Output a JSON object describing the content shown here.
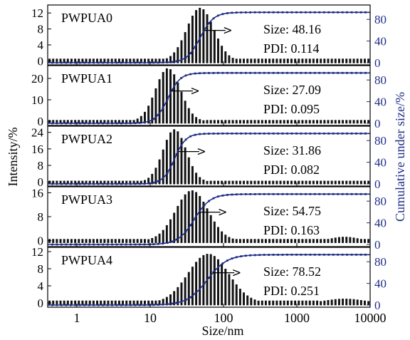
{
  "colors": {
    "bars": "#111111",
    "cumulative_curve": "#1f2d86",
    "right_axis": "#1f2d86",
    "frame": "#000000"
  },
  "chart_data": {
    "type": "bar",
    "xlabel": "Size/nm",
    "ylabel_left": "Intensity/%",
    "ylabel_right": "Cumulative under size/%",
    "x_scale": "log",
    "xlim": [
      0.4,
      10000
    ],
    "x_ticks": [
      {
        "value": 1,
        "label": "1"
      },
      {
        "value": 10,
        "label": "10"
      },
      {
        "value": 100,
        "label": "100"
      },
      {
        "value": 1000,
        "label": "1000"
      },
      {
        "value": 10000,
        "label": "10000"
      }
    ],
    "right_ylim": [
      0,
      100
    ],
    "right_ticks": [
      "0",
      "40",
      "80"
    ],
    "grid": false,
    "panels": [
      {
        "name": "PWPUA0",
        "size_text": "Size: 48.16",
        "pdi_text": "PDI: 0.114",
        "ylim": [
          -1,
          14
        ],
        "y_ticks": [
          "0",
          "4",
          "8",
          "12"
        ],
        "intensity": {
          "center": 48.16,
          "pdi": 0.114,
          "peak": 13.3,
          "secondary": []
        },
        "cumulative": {
          "median": 48.16,
          "pdi": 0.114,
          "end_level": 0.93
        }
      },
      {
        "name": "PWPUA1",
        "size_text": "Size: 27.09",
        "pdi_text": "PDI: 0.095",
        "ylim": [
          -2,
          26
        ],
        "y_ticks": [
          "0",
          "10",
          "20"
        ],
        "intensity": {
          "center": 17.5,
          "pdi": 0.095,
          "peak": 24.8,
          "secondary": []
        },
        "cumulative": {
          "median": 17.5,
          "pdi": 0.095,
          "end_level": 0.93
        }
      },
      {
        "name": "PWPUA2",
        "size_text": "Size: 31.86",
        "pdi_text": "PDI: 0.082",
        "ylim": [
          -2,
          27
        ],
        "y_ticks": [
          "0",
          "8",
          "16",
          "24"
        ],
        "intensity": {
          "center": 21.5,
          "pdi": 0.082,
          "peak": 25.5,
          "secondary": []
        },
        "cumulative": {
          "median": 21.5,
          "pdi": 0.082,
          "end_level": 0.93
        }
      },
      {
        "name": "PWPUA3",
        "size_text": "Size: 54.75",
        "pdi_text": "PDI: 0.163",
        "ylim": [
          -2,
          18
        ],
        "y_ticks": [
          "0",
          "8",
          "16"
        ],
        "intensity": {
          "center": 37,
          "pdi": 0.163,
          "peak": 16.8,
          "secondary": [
            {
              "center": 4500,
              "width": 0.35,
              "height": 1.3
            }
          ]
        },
        "cumulative": {
          "median": 40,
          "pdi": 0.163,
          "end_level": 0.93
        }
      },
      {
        "name": "PWPUA4",
        "size_text": "Size: 78.52",
        "pdi_text": "PDI: 0.251",
        "ylim": [
          -1,
          13
        ],
        "y_ticks": [
          "0",
          "4",
          "8",
          "12"
        ],
        "intensity": {
          "center": 62,
          "pdi": 0.251,
          "peak": 11.5,
          "secondary": [
            {
              "center": 4500,
              "width": 0.5,
              "height": 1.0
            }
          ]
        },
        "cumulative": {
          "median": 60,
          "pdi": 0.251,
          "end_level": 0.93
        }
      }
    ]
  }
}
